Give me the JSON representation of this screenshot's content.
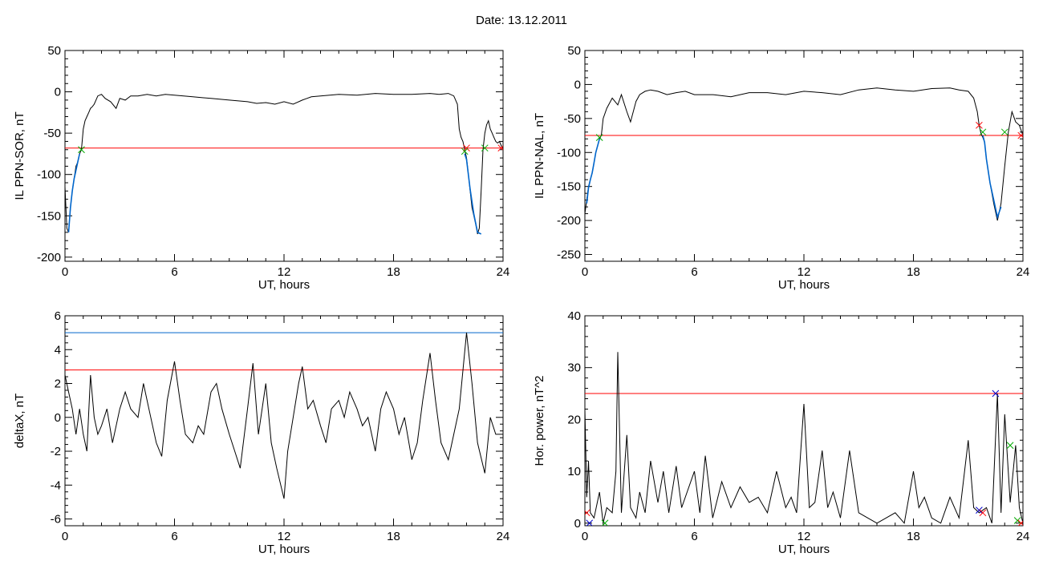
{
  "figure_title": "Date:  13.12.2011",
  "colors": {
    "line": "#000000",
    "threshold": "#ff0000",
    "blue": "#0066cc",
    "green": "#00aa00",
    "red_marker": "#ff0000",
    "blue_marker": "#0000cc"
  },
  "chart_data": [
    {
      "id": "ppn-sor",
      "type": "line",
      "ylabel": "IL PPN-SOR, nT",
      "xlabel": "UT, hours",
      "xlim": [
        0,
        24
      ],
      "ylim": [
        -205,
        50
      ],
      "xticks": [
        0,
        6,
        12,
        18,
        24
      ],
      "yticks": [
        -200,
        -150,
        -100,
        -50,
        0,
        50
      ],
      "threshold": -68,
      "series": [
        {
          "x": [
            0,
            0.1,
            0.2,
            0.3,
            0.4,
            0.5,
            0.6,
            0.7,
            0.8,
            0.9,
            1.0,
            1.1,
            1.2,
            1.3,
            1.4,
            1.5,
            1.6,
            1.8,
            2.0,
            2.2,
            2.5,
            2.8,
            3.0,
            3.3,
            3.6,
            4.0,
            4.5,
            5.0,
            5.5,
            6.0,
            7.0,
            8.0,
            9.0,
            10.0,
            10.5,
            11.0,
            11.5,
            12.0,
            12.5,
            13.0,
            13.5,
            14.0,
            15.0,
            16.0,
            17.0,
            18.0,
            19.0,
            20.0,
            20.5,
            21.0,
            21.3,
            21.5,
            21.6,
            21.7,
            21.8,
            21.9,
            22.0,
            22.1,
            22.2,
            22.3,
            22.4,
            22.5,
            22.6,
            22.7,
            22.8,
            22.9,
            23.0,
            23.1,
            23.2,
            23.3,
            23.4,
            23.5,
            23.6,
            23.7,
            23.8,
            23.9,
            24.0
          ],
          "y": [
            -115,
            -165,
            -170,
            -140,
            -120,
            -105,
            -90,
            -85,
            -75,
            -70,
            -45,
            -35,
            -30,
            -25,
            -20,
            -18,
            -15,
            -5,
            -3,
            -8,
            -12,
            -20,
            -8,
            -10,
            -5,
            -5,
            -3,
            -5,
            -3,
            -4,
            -6,
            -8,
            -10,
            -12,
            -14,
            -13,
            -15,
            -12,
            -15,
            -10,
            -6,
            -5,
            -3,
            -4,
            -2,
            -3,
            -3,
            -2,
            -3,
            -2,
            -5,
            -15,
            -45,
            -55,
            -60,
            -70,
            -80,
            -100,
            -120,
            -140,
            -150,
            -160,
            -172,
            -165,
            -120,
            -70,
            -50,
            -40,
            -35,
            -45,
            -50,
            -55,
            -60,
            -62,
            -60,
            -65,
            -68
          ]
        }
      ],
      "blue_segments": [
        {
          "x": [
            0.2,
            0.3,
            0.4,
            0.5,
            0.6,
            0.7,
            0.8
          ],
          "y": [
            -170,
            -140,
            -120,
            -105,
            -95,
            -85,
            -75
          ]
        },
        {
          "x": [
            21.9,
            22.0,
            22.2,
            22.4,
            22.6,
            22.8
          ],
          "y": [
            -75,
            -82,
            -118,
            -148,
            -170,
            -172
          ]
        }
      ],
      "markers": [
        {
          "x": 0.9,
          "y": -70,
          "color": "green"
        },
        {
          "x": 22.0,
          "y": -68,
          "color": "red"
        },
        {
          "x": 21.9,
          "y": -72,
          "color": "green"
        },
        {
          "x": 23.0,
          "y": -68,
          "color": "green"
        },
        {
          "x": 23.9,
          "y": -68,
          "color": "red"
        }
      ]
    },
    {
      "id": "ppn-nal",
      "type": "line",
      "ylabel": "IL PPN-NAL, nT",
      "xlabel": "UT, hours",
      "xlim": [
        0,
        24
      ],
      "ylim": [
        -260,
        50
      ],
      "xticks": [
        0,
        6,
        12,
        18,
        24
      ],
      "yticks": [
        -250,
        -200,
        -150,
        -100,
        -50,
        0,
        50
      ],
      "threshold": -75,
      "series": [
        {
          "x": [
            0,
            0.1,
            0.2,
            0.3,
            0.4,
            0.5,
            0.6,
            0.7,
            0.8,
            0.9,
            1.0,
            1.2,
            1.5,
            1.8,
            2.0,
            2.3,
            2.5,
            2.8,
            3.0,
            3.3,
            3.6,
            4.0,
            4.5,
            5.0,
            5.5,
            6.0,
            7.0,
            8.0,
            9.0,
            10.0,
            11.0,
            12.0,
            13.0,
            14.0,
            15.0,
            16.0,
            17.0,
            18.0,
            19.0,
            20.0,
            20.5,
            21.0,
            21.3,
            21.5,
            21.6,
            21.7,
            21.8,
            21.9,
            22.0,
            22.2,
            22.4,
            22.6,
            22.8,
            23.0,
            23.2,
            23.4,
            23.6,
            23.8,
            24.0
          ],
          "y": [
            -190,
            -170,
            -150,
            -140,
            -130,
            -115,
            -100,
            -90,
            -80,
            -75,
            -50,
            -35,
            -20,
            -30,
            -15,
            -40,
            -55,
            -25,
            -15,
            -10,
            -8,
            -10,
            -15,
            -12,
            -10,
            -15,
            -15,
            -18,
            -12,
            -12,
            -15,
            -10,
            -12,
            -15,
            -8,
            -5,
            -8,
            -10,
            -6,
            -5,
            -8,
            -10,
            -20,
            -40,
            -60,
            -72,
            -78,
            -85,
            -110,
            -145,
            -175,
            -200,
            -175,
            -120,
            -70,
            -40,
            -55,
            -60,
            -75
          ]
        }
      ],
      "blue_segments": [
        {
          "x": [
            0.1,
            0.2,
            0.3,
            0.4,
            0.5,
            0.6,
            0.7,
            0.8
          ],
          "y": [
            -175,
            -152,
            -140,
            -130,
            -115,
            -100,
            -90,
            -80
          ]
        },
        {
          "x": [
            21.8,
            21.9,
            22.0,
            22.2,
            22.4,
            22.6,
            22.8
          ],
          "y": [
            -75,
            -85,
            -110,
            -145,
            -170,
            -195,
            -180
          ]
        }
      ],
      "markers": [
        {
          "x": 0.8,
          "y": -78,
          "color": "green"
        },
        {
          "x": 21.6,
          "y": -60,
          "color": "red"
        },
        {
          "x": 21.8,
          "y": -70,
          "color": "green"
        },
        {
          "x": 23.0,
          "y": -70,
          "color": "green"
        },
        {
          "x": 23.9,
          "y": -75,
          "color": "red"
        }
      ]
    },
    {
      "id": "deltax",
      "type": "line",
      "ylabel": "deltaX, nT",
      "xlabel": "UT, hours",
      "xlim": [
        0,
        24
      ],
      "ylim": [
        -6.4,
        6
      ],
      "xticks": [
        0,
        6,
        12,
        18,
        24
      ],
      "yticks": [
        -6,
        -4,
        -2,
        0,
        2,
        4,
        6
      ],
      "threshold": 2.8,
      "threshold2": 5.0,
      "series": [
        {
          "x": [
            0,
            0.2,
            0.4,
            0.6,
            0.8,
            1.0,
            1.2,
            1.4,
            1.6,
            1.8,
            2.0,
            2.3,
            2.6,
            3.0,
            3.3,
            3.6,
            4.0,
            4.3,
            4.6,
            5.0,
            5.3,
            5.6,
            6.0,
            6.3,
            6.6,
            7.0,
            7.3,
            7.6,
            8.0,
            8.3,
            8.6,
            9.0,
            9.3,
            9.6,
            10.0,
            10.3,
            10.6,
            11.0,
            11.3,
            11.6,
            12.0,
            12.2,
            12.5,
            12.8,
            13.0,
            13.3,
            13.6,
            14.0,
            14.3,
            14.6,
            15.0,
            15.3,
            15.6,
            16.0,
            16.3,
            16.6,
            17.0,
            17.3,
            17.6,
            18.0,
            18.3,
            18.6,
            19.0,
            19.3,
            19.6,
            20.0,
            20.3,
            20.6,
            21.0,
            21.3,
            21.6,
            22.0,
            22.3,
            22.6,
            23.0,
            23.3,
            23.6,
            24.0
          ],
          "y": [
            2.5,
            1.5,
            0.5,
            -1.0,
            0.5,
            -1.0,
            -2.0,
            2.5,
            0.0,
            -1.0,
            -0.5,
            0.5,
            -1.5,
            0.5,
            1.5,
            0.5,
            0.0,
            2.0,
            0.5,
            -1.5,
            -2.3,
            1.0,
            3.3,
            1.0,
            -1.0,
            -1.5,
            -0.5,
            -1.0,
            1.5,
            2.0,
            0.5,
            -1.0,
            -2.0,
            -3.0,
            0.5,
            3.2,
            -1.0,
            2.0,
            -1.5,
            -3.0,
            -4.8,
            -2.0,
            0.0,
            2.0,
            3.0,
            0.5,
            1.0,
            -0.5,
            -1.5,
            0.5,
            1.0,
            0.0,
            1.5,
            0.5,
            -0.5,
            0.0,
            -2.0,
            0.5,
            1.5,
            0.5,
            -1.0,
            0.0,
            -2.5,
            -1.5,
            1.0,
            3.8,
            1.0,
            -1.5,
            -2.5,
            -1.0,
            0.5,
            5.0,
            2.0,
            -1.5,
            -3.3,
            0.0,
            -1.0,
            -1.0
          ]
        }
      ]
    },
    {
      "id": "hor-power",
      "type": "line",
      "ylabel": "Hor. power, nT^2",
      "xlabel": "UT, hours",
      "xlim": [
        0,
        24
      ],
      "ylim": [
        -0.5,
        40
      ],
      "xticks": [
        0,
        6,
        12,
        18,
        24
      ],
      "yticks": [
        0,
        10,
        20,
        30,
        40
      ],
      "threshold": 25,
      "series": [
        {
          "x": [
            0,
            0.1,
            0.2,
            0.3,
            0.5,
            0.8,
            1.0,
            1.2,
            1.5,
            1.7,
            1.8,
            2.0,
            2.3,
            2.5,
            2.8,
            3.0,
            3.3,
            3.6,
            4.0,
            4.3,
            4.6,
            5.0,
            5.3,
            5.6,
            6.0,
            6.3,
            6.6,
            7.0,
            7.5,
            8.0,
            8.5,
            9.0,
            9.5,
            10.0,
            10.5,
            11.0,
            11.3,
            11.6,
            12.0,
            12.3,
            12.6,
            13.0,
            13.3,
            13.6,
            14.0,
            14.5,
            15.0,
            15.5,
            16.0,
            16.5,
            17.0,
            17.5,
            18.0,
            18.3,
            18.6,
            19.0,
            19.5,
            20.0,
            20.5,
            21.0,
            21.3,
            21.6,
            22.0,
            22.3,
            22.6,
            22.8,
            23.0,
            23.3,
            23.6,
            23.8,
            24.0
          ],
          "y": [
            22,
            5,
            12,
            2,
            1,
            6,
            0,
            3,
            2,
            10,
            33,
            2,
            17,
            3,
            1,
            6,
            2,
            12,
            4,
            10,
            2,
            11,
            3,
            6,
            10,
            2,
            13,
            1,
            8,
            3,
            7,
            4,
            5,
            2,
            10,
            3,
            5,
            2,
            23,
            3,
            4,
            14,
            3,
            6,
            1,
            14,
            2,
            1,
            0,
            1,
            2,
            0,
            10,
            3,
            5,
            1,
            0,
            5,
            1,
            16,
            3,
            2,
            3,
            0,
            25,
            2,
            21,
            4,
            15,
            3,
            0
          ]
        }
      ],
      "markers": [
        {
          "x": 0.1,
          "y": 2,
          "color": "red"
        },
        {
          "x": 0.25,
          "y": 0,
          "color": "blue"
        },
        {
          "x": 1.1,
          "y": 0,
          "color": "green"
        },
        {
          "x": 21.6,
          "y": 2.5,
          "color": "blue"
        },
        {
          "x": 21.8,
          "y": 2,
          "color": "red"
        },
        {
          "x": 22.5,
          "y": 25,
          "color": "blue"
        },
        {
          "x": 23.3,
          "y": 15,
          "color": "green"
        },
        {
          "x": 23.7,
          "y": 0.5,
          "color": "green"
        },
        {
          "x": 23.9,
          "y": 0,
          "color": "red"
        }
      ]
    }
  ]
}
